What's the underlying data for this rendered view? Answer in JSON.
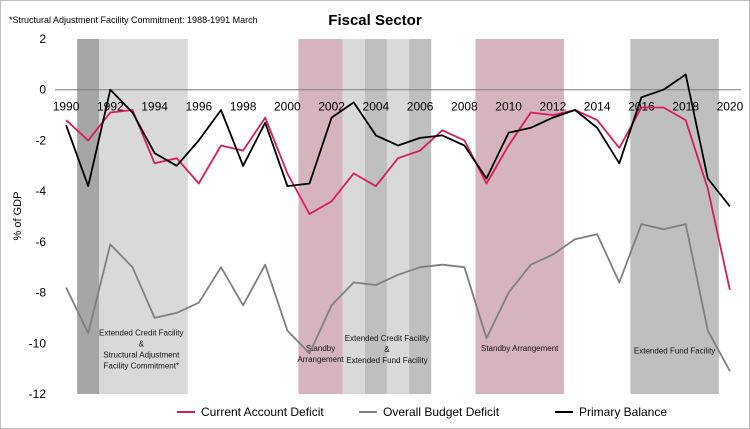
{
  "chart_data": {
    "type": "line",
    "title": "Fiscal Sector",
    "note": "*Structural Adjustment Facility Commitment: 1988-1991 March",
    "ylabel": "% of GDP",
    "xlabel": "",
    "xlim": [
      1989.5,
      2020.5
    ],
    "ylim": [
      -12,
      2
    ],
    "x_ticks": [
      1990,
      1992,
      1994,
      1996,
      1998,
      2000,
      2002,
      2004,
      2006,
      2008,
      2010,
      2012,
      2014,
      2016,
      2018,
      2020
    ],
    "y_ticks": [
      2,
      0,
      -2,
      -4,
      -6,
      -8,
      -10,
      -12
    ],
    "x": [
      1990,
      1991,
      1992,
      1993,
      1994,
      1995,
      1996,
      1997,
      1998,
      1999,
      2000,
      2001,
      2002,
      2003,
      2004,
      2005,
      2006,
      2007,
      2008,
      2009,
      2010,
      2011,
      2012,
      2013,
      2014,
      2015,
      2016,
      2017,
      2018,
      2019,
      2020
    ],
    "series": [
      {
        "name": "Current Account Deficit",
        "color": "#d81b60",
        "values": [
          -1.2,
          -2.0,
          -0.9,
          -0.8,
          -2.9,
          -2.7,
          -3.7,
          -2.2,
          -2.4,
          -1.1,
          -3.3,
          -4.9,
          -4.4,
          -3.3,
          -3.8,
          -2.7,
          -2.4,
          -1.6,
          -2.0,
          -3.7,
          -2.2,
          -0.9,
          -1.0,
          -0.8,
          -1.2,
          -2.3,
          -0.7,
          -0.7,
          -1.2,
          -3.9,
          -7.9
        ]
      },
      {
        "name": "Overall Budget Deficit",
        "color": "#7f7f7f",
        "values": [
          -7.8,
          -9.6,
          -6.1,
          -7.0,
          -9.0,
          -8.8,
          -8.4,
          -7.0,
          -8.5,
          -6.9,
          -9.5,
          -10.4,
          -8.5,
          -7.6,
          -7.7,
          -7.3,
          -7.0,
          -6.9,
          -7.0,
          -9.8,
          -8.0,
          -6.9,
          -6.5,
          -5.9,
          -5.7,
          -7.6,
          -5.3,
          -5.5,
          -5.3,
          -9.5,
          -11.1
        ]
      },
      {
        "name": "Primary Balance",
        "color": "#000000",
        "values": [
          -1.4,
          -3.8,
          0.0,
          -0.9,
          -2.5,
          -3.0,
          -2.0,
          -0.8,
          -3.0,
          -1.3,
          -3.8,
          -3.7,
          -1.1,
          -0.5,
          -1.8,
          -2.2,
          -1.9,
          -1.8,
          -2.2,
          -3.5,
          -1.7,
          -1.5,
          -1.1,
          -0.8,
          -1.5,
          -2.9,
          -0.3,
          0.0,
          0.6,
          -3.5,
          -4.6
        ]
      }
    ],
    "shaded_periods": [
      {
        "start": 1990.5,
        "end": 1991.5,
        "color": "#a6a6a6"
      },
      {
        "start": 1991.5,
        "end": 1995.5,
        "color": "#d9d9d9"
      },
      {
        "start": 2000.5,
        "end": 2002.5,
        "color": "#d6b4bd"
      },
      {
        "start": 2002.5,
        "end": 2003.5,
        "color": "#d9d9d9"
      },
      {
        "start": 2003.5,
        "end": 2004.5,
        "color": "#bfbfbf"
      },
      {
        "start": 2004.5,
        "end": 2005.5,
        "color": "#d9d9d9"
      },
      {
        "start": 2005.5,
        "end": 2006.5,
        "color": "#bfbfbf"
      },
      {
        "start": 2008.5,
        "end": 2012.5,
        "color": "#d6b4bd"
      },
      {
        "start": 2015.5,
        "end": 2019.5,
        "color": "#bfbfbf"
      }
    ],
    "annotations": [
      {
        "lines": [
          "Extended Credit Facility",
          "&",
          "Structural Adjustment",
          "Facility Commitment*"
        ],
        "x": 1993.4,
        "y": -9.7
      },
      {
        "lines": [
          "Standby",
          "Arrangement"
        ],
        "x": 2001.5,
        "y": -10.3
      },
      {
        "lines": [
          "Extended Credit Facility",
          "&",
          "Extended Fund Facility"
        ],
        "x": 2004.5,
        "y": -9.9
      },
      {
        "lines": [
          "Standby Arrangement"
        ],
        "x": 2010.5,
        "y": -10.3
      },
      {
        "lines": [
          "Extended Fund Facility"
        ],
        "x": 2017.5,
        "y": -10.4
      }
    ],
    "legend_position": "bottom-center",
    "grid": false
  }
}
